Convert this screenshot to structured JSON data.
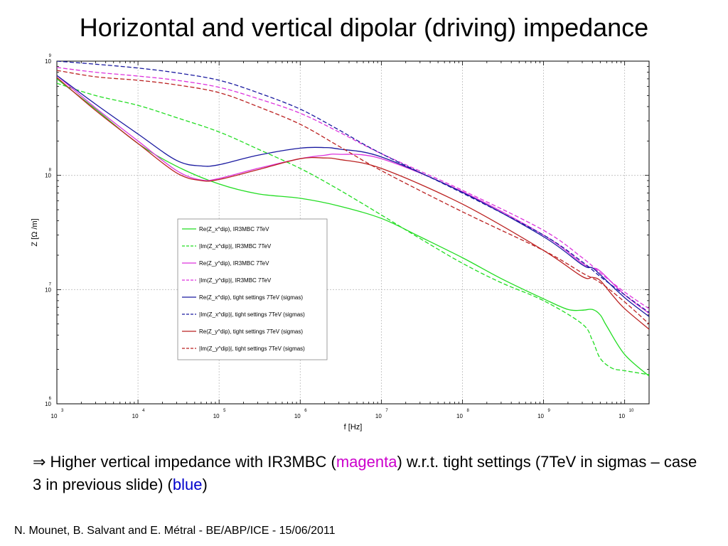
{
  "title": "Horizontal and vertical dipolar (driving) impedance",
  "caption": {
    "arrow": "⇒",
    "part1": " Higher vertical impedance with IR3MBC (",
    "magenta_word": "magenta",
    "part2": ") w.r.t. tight settings (7TeV in sigmas – case 3 in previous slide) (",
    "blue_word": "blue",
    "part3": ")"
  },
  "footer": "N. Mounet, B. Salvant and E. Métral - BE/ABP/ICE - 15/06/2011",
  "colors": {
    "green": "#22dd22",
    "magenta": "#dd33dd",
    "blue": "#1a1aa0",
    "red": "#bb2222",
    "caption_magenta": "#cc00cc",
    "caption_blue": "#0000cc"
  },
  "chart_data": {
    "type": "line",
    "title": "",
    "xlabel": "f [Hz]",
    "ylabel": "Z [Ω /m]",
    "x_scale": "log",
    "y_scale": "log",
    "xlim": [
      1000,
      20000000000
    ],
    "ylim": [
      1000000,
      1000000000
    ],
    "x_tick_labels": [
      "10^3",
      "10^4",
      "10^5",
      "10^6",
      "10^7",
      "10^8",
      "10^9",
      "10^10"
    ],
    "y_tick_labels": [
      "10^6",
      "10^7",
      "10^8",
      "10^9"
    ],
    "grid": true,
    "legend_position": "center-left",
    "series": [
      {
        "name": "Re(Z_x^dip), IR3MBC 7TeV",
        "color": "#22dd22",
        "dash": "solid",
        "x": [
          1000,
          3000,
          10000,
          30000,
          100000,
          300000,
          1000000,
          3000000,
          10000000,
          30000000,
          100000000,
          300000000,
          1000000000,
          2000000000,
          3000000000,
          4000000000,
          5000000000,
          6000000000,
          10000000000,
          20000000000
        ],
        "y": [
          700000000,
          380000000,
          190000000,
          120000000,
          84000000,
          69000000,
          63000000,
          54000000,
          42000000,
          29000000,
          19000000,
          12500000,
          8300000,
          6700000,
          6600000,
          6700000,
          6000000,
          4800000,
          2700000,
          1750000
        ]
      },
      {
        "name": "|Im(Z_x^dip)|, IR3MBC 7TeV",
        "color": "#22dd22",
        "dash": "dashed",
        "x": [
          1000,
          3000,
          10000,
          30000,
          100000,
          300000,
          1000000,
          3000000,
          10000000,
          30000000,
          100000000,
          300000000,
          1000000000,
          3000000000,
          4000000000,
          5000000000,
          7000000000,
          10000000000,
          20000000000
        ],
        "y": [
          640000000,
          500000000,
          410000000,
          320000000,
          240000000,
          170000000,
          115000000,
          75000000,
          45000000,
          28000000,
          17000000,
          11500000,
          8000000,
          5000000,
          3600000,
          2500000,
          2050000,
          1950000,
          1800000
        ]
      },
      {
        "name": "Re(Z_y^dip), IR3MBC 7TeV",
        "color": "#dd33dd",
        "dash": "solid",
        "x": [
          1000,
          3000,
          10000,
          30000,
          60000,
          100000,
          300000,
          1000000,
          2000000,
          3000000,
          10000000,
          100000000,
          1000000000,
          3000000000,
          4000000000,
          5000000000,
          10000000000,
          20000000000
        ],
        "y": [
          750000000,
          390000000,
          200000000,
          110000000,
          91000000,
          94000000,
          115000000,
          140000000,
          150000000,
          153000000,
          140000000,
          72000000,
          30000000,
          17000000,
          15500000,
          14500000,
          9000000,
          6200000
        ]
      },
      {
        "name": "|Im(Z_y^dip)|, IR3MBC 7TeV",
        "color": "#dd33dd",
        "dash": "dashed",
        "x": [
          1000,
          3000,
          10000,
          30000,
          100000,
          300000,
          1000000,
          3000000,
          10000000,
          100000000,
          1000000000,
          3000000000,
          5000000000,
          10000000000,
          20000000000
        ],
        "y": [
          880000000,
          800000000,
          740000000,
          680000000,
          590000000,
          470000000,
          350000000,
          240000000,
          155000000,
          74000000,
          33000000,
          19000000,
          14000000,
          9500000,
          6800000
        ]
      },
      {
        "name": "Re(Z_x^dip), tight settings 7TeV (sigmas)",
        "color": "#1a1aa0",
        "dash": "solid",
        "x": [
          1000,
          3000,
          10000,
          30000,
          60000,
          100000,
          300000,
          1000000,
          2000000,
          3000000,
          10000000,
          100000000,
          1000000000,
          3000000000,
          4000000000,
          5000000000,
          10000000000,
          20000000000
        ],
        "y": [
          750000000,
          420000000,
          230000000,
          135000000,
          121000000,
          124000000,
          150000000,
          173000000,
          175000000,
          170000000,
          145000000,
          71000000,
          29000000,
          16500000,
          15500000,
          13500000,
          8500000,
          5800000
        ]
      },
      {
        "name": "|Im(Z_x^dip)|, tight settings 7TeV (sigmas)",
        "color": "#1a1aa0",
        "dash": "dashed",
        "x": [
          1000,
          3000,
          10000,
          30000,
          100000,
          300000,
          1000000,
          3000000,
          10000000,
          100000000,
          1000000000,
          3000000000,
          5000000000,
          10000000000,
          20000000000
        ],
        "y": [
          1000000000,
          940000000,
          870000000,
          790000000,
          680000000,
          530000000,
          380000000,
          250000000,
          155000000,
          70000000,
          30000000,
          17500000,
          13000000,
          9000000,
          6300000
        ]
      },
      {
        "name": "Re(Z_y^dip), tight settings 7TeV (sigmas)",
        "color": "#bb2222",
        "dash": "solid",
        "x": [
          1000,
          3000,
          10000,
          30000,
          60000,
          100000,
          300000,
          1000000,
          2000000,
          3000000,
          10000000,
          100000000,
          1000000000,
          3000000000,
          4000000000,
          5000000000,
          7000000000,
          10000000000,
          20000000000
        ],
        "y": [
          720000000,
          370000000,
          190000000,
          105000000,
          90000000,
          92000000,
          112000000,
          140000000,
          142000000,
          138000000,
          115000000,
          56000000,
          22000000,
          13000000,
          12800000,
          12000000,
          9000000,
          6800000,
          4500000
        ]
      },
      {
        "name": "|Im(Z_y^dip)|, tight settings 7TeV (sigmas)",
        "color": "#bb2222",
        "dash": "dashed",
        "x": [
          1000,
          3000,
          10000,
          30000,
          100000,
          300000,
          1000000,
          3000000,
          10000000,
          100000000,
          1000000000,
          3000000000,
          5000000000,
          10000000000,
          20000000000
        ],
        "y": [
          830000000,
          730000000,
          680000000,
          620000000,
          530000000,
          400000000,
          280000000,
          180000000,
          110000000,
          48000000,
          22000000,
          14000000,
          11500000,
          7800000,
          5000000
        ]
      }
    ]
  }
}
